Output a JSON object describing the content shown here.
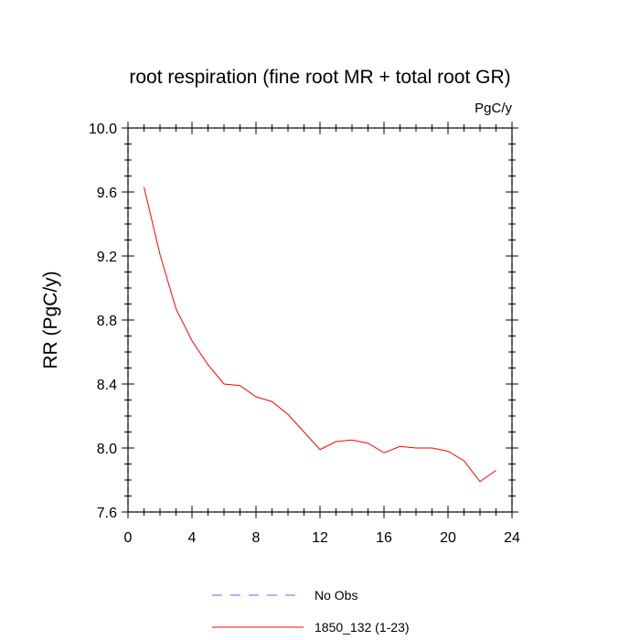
{
  "chart_data": {
    "type": "line",
    "title": "root respiration (fine root MR + total root GR)",
    "units_label": "PgC/y",
    "ylabel": "RR  (PgC/y)",
    "xlabel": "",
    "xlim": [
      0,
      24
    ],
    "ylim": [
      7.6,
      10.0
    ],
    "x_ticks": [
      0,
      4,
      8,
      12,
      16,
      20,
      24
    ],
    "x_tick_labels": [
      "0",
      "4",
      "8",
      "12",
      "16",
      "20",
      "24"
    ],
    "y_ticks": [
      7.6,
      8.0,
      8.4,
      8.8,
      9.2,
      9.6,
      10.0
    ],
    "y_tick_labels": [
      "7.6",
      "8.0",
      "8.4",
      "8.8",
      "9.2",
      "9.6",
      "10.0"
    ],
    "series": [
      {
        "name": "1850_132 (1-23)",
        "color": "#ff0000",
        "x": [
          1,
          2,
          3,
          4,
          5,
          6,
          7,
          8,
          9,
          10,
          11,
          12,
          13,
          14,
          15,
          16,
          17,
          18,
          19,
          20,
          21,
          22,
          23
        ],
        "values": [
          9.63,
          9.21,
          8.87,
          8.67,
          8.52,
          8.4,
          8.39,
          8.32,
          8.29,
          8.21,
          8.1,
          7.99,
          8.04,
          8.05,
          8.03,
          7.97,
          8.01,
          8.0,
          8.0,
          7.98,
          7.92,
          7.79,
          7.86
        ]
      }
    ],
    "legend": [
      {
        "label": "No Obs",
        "style": "dashed",
        "color": "#6666ff"
      },
      {
        "label": "1850_132 (1-23)",
        "style": "solid",
        "color": "#ff0000"
      }
    ]
  }
}
